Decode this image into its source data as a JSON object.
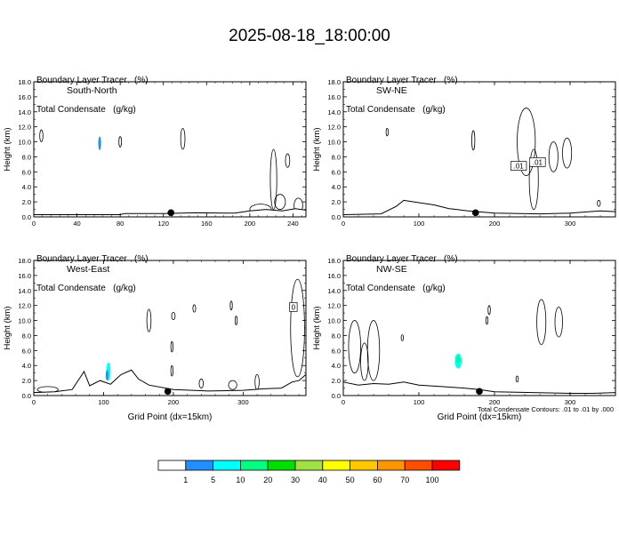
{
  "title": "2025-08-18_18:00:00",
  "footnote": "Total Condensate Contours: .01 to .01 by .000",
  "chart_data": [
    {
      "type": "contour",
      "panel": "South-North",
      "title_lines": [
        "Boundary Layer Tracer   (%)",
        "Total Condensate   (g/kg)"
      ],
      "ylabel": "Height (km)",
      "xlabel": "",
      "xlim": [
        0,
        252
      ],
      "ylim": [
        0,
        18
      ],
      "xticks": [
        0,
        40,
        80,
        120,
        160,
        200,
        240
      ],
      "yticks": [
        0,
        2,
        4,
        6,
        8,
        10,
        12,
        14,
        16,
        18
      ],
      "ytick_labels": [
        "0.0",
        "2.0",
        "4.0",
        "6.0",
        "8.0",
        "10.0",
        "12.0",
        "14.0",
        "16.0",
        "18.0"
      ],
      "marker_x": 127,
      "terrain": [
        [
          0,
          0.3
        ],
        [
          80,
          0.3
        ],
        [
          84,
          0.45
        ],
        [
          120,
          0.45
        ],
        [
          150,
          0.55
        ],
        [
          186,
          0.5
        ],
        [
          200,
          0.8
        ],
        [
          215,
          1.0
        ],
        [
          230,
          0.8
        ],
        [
          242,
          1.1
        ],
        [
          252,
          0.9
        ]
      ],
      "condensate_contours": [
        {
          "cx": 7,
          "cy": 10.8,
          "rx": 1.5,
          "ry": 0.8
        },
        {
          "cx": 80,
          "cy": 10.0,
          "rx": 1.2,
          "ry": 0.7
        },
        {
          "cx": 138,
          "cy": 10.4,
          "rx": 2.0,
          "ry": 1.4
        },
        {
          "cx": 222,
          "cy": 5.0,
          "rx": 3.0,
          "ry": 4.0
        },
        {
          "cx": 235,
          "cy": 7.5,
          "rx": 2.0,
          "ry": 0.9
        },
        {
          "cx": 228,
          "cy": 2.0,
          "rx": 5.0,
          "ry": 1.0
        },
        {
          "cx": 245,
          "cy": 1.5,
          "rx": 4.0,
          "ry": 1.0
        },
        {
          "cx": 210,
          "cy": 1.0,
          "rx": 10.0,
          "ry": 0.7
        }
      ],
      "tracer_fill": [
        {
          "cx": 61,
          "cy": 9.8,
          "rx": 1.3,
          "ry": 0.9,
          "value": 1
        }
      ],
      "contour_labels": []
    },
    {
      "type": "contour",
      "panel": "SW-NE",
      "title_lines": [
        "Boundary Layer Tracer   (%)",
        "Total Condensate   (g/kg)"
      ],
      "ylabel": "Height (km)",
      "xlabel": "",
      "xlim": [
        0,
        360
      ],
      "ylim": [
        0,
        18
      ],
      "xticks": [
        0,
        100,
        200,
        300
      ],
      "yticks": [
        0,
        2,
        4,
        6,
        8,
        10,
        12,
        14,
        16,
        18
      ],
      "ytick_labels": [
        "0.0",
        "2.0",
        "4.0",
        "6.0",
        "8.0",
        "10.0",
        "12.0",
        "14.0",
        "16.0",
        "18.0"
      ],
      "marker_x": 175,
      "terrain": [
        [
          0,
          0.3
        ],
        [
          50,
          0.4
        ],
        [
          70,
          1.4
        ],
        [
          80,
          2.2
        ],
        [
          100,
          1.9
        ],
        [
          120,
          1.6
        ],
        [
          140,
          1.1
        ],
        [
          165,
          0.8
        ],
        [
          200,
          0.5
        ],
        [
          260,
          0.4
        ],
        [
          300,
          0.5
        ],
        [
          340,
          0.8
        ],
        [
          360,
          0.7
        ]
      ],
      "condensate_contours": [
        {
          "cx": 58,
          "cy": 11.3,
          "rx": 1.0,
          "ry": 0.5
        },
        {
          "cx": 172,
          "cy": 10.2,
          "rx": 2.0,
          "ry": 1.3
        },
        {
          "cx": 242,
          "cy": 10.0,
          "rx": 12.0,
          "ry": 4.5
        },
        {
          "cx": 252,
          "cy": 5.0,
          "rx": 6.0,
          "ry": 4.0
        },
        {
          "cx": 278,
          "cy": 8.0,
          "rx": 6.0,
          "ry": 2.0
        },
        {
          "cx": 296,
          "cy": 8.5,
          "rx": 6.0,
          "ry": 2.0
        },
        {
          "cx": 338,
          "cy": 1.8,
          "rx": 2.0,
          "ry": 0.4
        }
      ],
      "tracer_fill": [],
      "contour_labels": [
        {
          "x": 232,
          "y": 6.8,
          "text": ".01"
        },
        {
          "x": 257,
          "y": 7.3,
          "text": ".01"
        }
      ]
    },
    {
      "type": "contour",
      "panel": "West-East",
      "title_lines": [
        "Boundary Layer Tracer   (%)",
        "Total Condensate   (g/kg)"
      ],
      "ylabel": "Height (km)",
      "xlabel": "Grid Point (dx=15km)",
      "xlim": [
        0,
        390
      ],
      "ylim": [
        0,
        18
      ],
      "xticks": [
        0,
        100,
        200,
        300
      ],
      "yticks": [
        0,
        2,
        4,
        6,
        8,
        10,
        12,
        14,
        16,
        18
      ],
      "ytick_labels": [
        "0.0",
        "2.0",
        "4.0",
        "6.0",
        "8.0",
        "10.0",
        "12.0",
        "14.0",
        "16.0",
        "18.0"
      ],
      "marker_x": 192,
      "terrain": [
        [
          0,
          0.4
        ],
        [
          30,
          0.5
        ],
        [
          55,
          0.8
        ],
        [
          65,
          2.2
        ],
        [
          72,
          3.2
        ],
        [
          80,
          1.3
        ],
        [
          95,
          2.0
        ],
        [
          110,
          1.5
        ],
        [
          118,
          2.2
        ],
        [
          125,
          2.8
        ],
        [
          140,
          3.4
        ],
        [
          150,
          2.2
        ],
        [
          165,
          1.4
        ],
        [
          200,
          0.8
        ],
        [
          250,
          0.6
        ],
        [
          300,
          0.7
        ],
        [
          330,
          0.9
        ],
        [
          355,
          1.0
        ],
        [
          370,
          1.8
        ],
        [
          380,
          2.0
        ],
        [
          390,
          2.8
        ]
      ],
      "condensate_contours": [
        {
          "cx": 20,
          "cy": 0.8,
          "rx": 15.0,
          "ry": 0.4
        },
        {
          "cx": 165,
          "cy": 10.0,
          "rx": 3.0,
          "ry": 1.5
        },
        {
          "cx": 200,
          "cy": 10.6,
          "rx": 2.5,
          "ry": 0.5
        },
        {
          "cx": 230,
          "cy": 11.6,
          "rx": 2.0,
          "ry": 0.5
        },
        {
          "cx": 198,
          "cy": 6.5,
          "rx": 1.5,
          "ry": 0.7
        },
        {
          "cx": 198,
          "cy": 3.3,
          "rx": 1.5,
          "ry": 0.7
        },
        {
          "cx": 240,
          "cy": 1.6,
          "rx": 3.0,
          "ry": 0.6
        },
        {
          "cx": 285,
          "cy": 1.4,
          "rx": 6.0,
          "ry": 0.6
        },
        {
          "cx": 283,
          "cy": 12.0,
          "rx": 1.2,
          "ry": 0.6
        },
        {
          "cx": 290,
          "cy": 10.0,
          "rx": 1.2,
          "ry": 0.6
        },
        {
          "cx": 378,
          "cy": 9.0,
          "rx": 10.0,
          "ry": 6.5
        },
        {
          "cx": 320,
          "cy": 1.8,
          "rx": 3.0,
          "ry": 1.0
        }
      ],
      "tracer_fill": [
        {
          "cx": 107,
          "cy": 3.2,
          "rx": 3.0,
          "ry": 1.2,
          "value": 5
        },
        {
          "cx": 105,
          "cy": 2.7,
          "rx": 2.0,
          "ry": 0.7,
          "value": 1
        }
      ],
      "contour_labels": [
        {
          "x": 372,
          "y": 11.8,
          "text": "0"
        }
      ]
    },
    {
      "type": "contour",
      "panel": "NW-SE",
      "title_lines": [
        "Boundary Layer Tracer   (%)",
        "Total Condensate   (g/kg)"
      ],
      "ylabel": "Height (km)",
      "xlabel": "Grid Point (dx=15km)",
      "xlim": [
        0,
        360
      ],
      "ylim": [
        0,
        18
      ],
      "xticks": [
        0,
        100,
        200,
        300
      ],
      "yticks": [
        0,
        2,
        4,
        6,
        8,
        10,
        12,
        14,
        16,
        18
      ],
      "ytick_labels": [
        "0.0",
        "2.0",
        "4.0",
        "6.0",
        "8.0",
        "10.0",
        "12.0",
        "14.0",
        "16.0",
        "18.0"
      ],
      "marker_x": 180,
      "terrain": [
        [
          0,
          1.8
        ],
        [
          20,
          1.4
        ],
        [
          40,
          1.6
        ],
        [
          60,
          1.5
        ],
        [
          80,
          1.8
        ],
        [
          100,
          1.4
        ],
        [
          130,
          1.2
        ],
        [
          160,
          1.0
        ],
        [
          180,
          0.8
        ],
        [
          200,
          0.5
        ],
        [
          250,
          0.4
        ],
        [
          300,
          0.3
        ],
        [
          330,
          0.3
        ],
        [
          360,
          0.4
        ]
      ],
      "condensate_contours": [
        {
          "cx": 15,
          "cy": 6.5,
          "rx": 8.0,
          "ry": 3.5
        },
        {
          "cx": 40,
          "cy": 6.0,
          "rx": 8.0,
          "ry": 4.0
        },
        {
          "cx": 28,
          "cy": 4.5,
          "rx": 5.0,
          "ry": 2.5
        },
        {
          "cx": 78,
          "cy": 7.7,
          "rx": 1.0,
          "ry": 0.4
        },
        {
          "cx": 193,
          "cy": 11.4,
          "rx": 1.5,
          "ry": 0.6
        },
        {
          "cx": 190,
          "cy": 10.0,
          "rx": 1.2,
          "ry": 0.5
        },
        {
          "cx": 230,
          "cy": 2.2,
          "rx": 1.5,
          "ry": 0.4
        },
        {
          "cx": 262,
          "cy": 9.8,
          "rx": 6.0,
          "ry": 3.0
        },
        {
          "cx": 285,
          "cy": 9.8,
          "rx": 5.0,
          "ry": 2.0
        }
      ],
      "tracer_fill": [
        {
          "cx": 152,
          "cy": 4.6,
          "rx": 4.5,
          "ry": 1.0,
          "value": 5
        },
        {
          "cx": 152,
          "cy": 4.8,
          "rx": 2.5,
          "ry": 0.5,
          "value": 10
        }
      ],
      "contour_labels": []
    }
  ],
  "colorbar": {
    "levels": [
      "1",
      "5",
      "10",
      "20",
      "30",
      "40",
      "50",
      "60",
      "70",
      "100"
    ],
    "colors": [
      "#ffffff",
      "#1e90ff",
      "#00ffff",
      "#00ff80",
      "#00e000",
      "#a0e040",
      "#ffff00",
      "#ffc800",
      "#ff9600",
      "#ff4e00",
      "#ff0000"
    ]
  }
}
